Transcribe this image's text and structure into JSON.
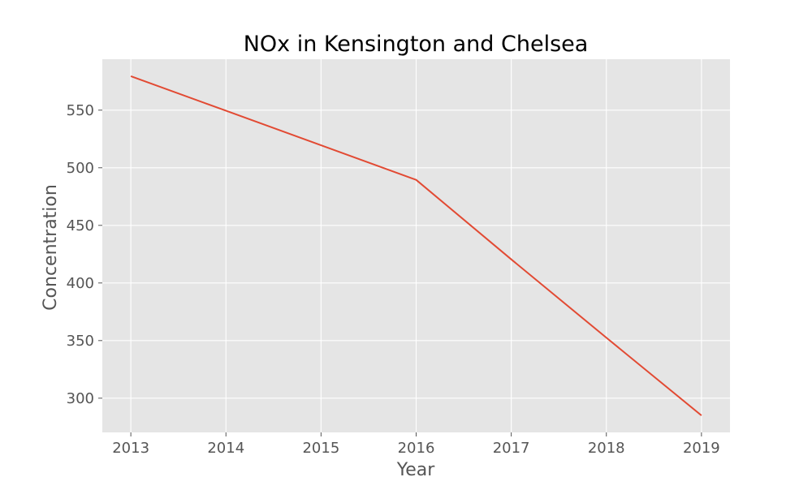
{
  "chart_data": {
    "type": "line",
    "title": "NOx in Kensington and Chelsea",
    "xlabel": "Year",
    "ylabel": "Concentration",
    "x": [
      2013,
      2014,
      2015,
      2016,
      2017,
      2018,
      2019
    ],
    "series": [
      {
        "values": [
          579.5,
          549.5,
          519.5,
          489.5,
          420.5,
          352.5,
          285.0
        ]
      }
    ],
    "xticks": [
      "2013",
      "2014",
      "2015",
      "2016",
      "2017",
      "2018",
      "2019"
    ],
    "yticks": [
      "300",
      "350",
      "400",
      "450",
      "500",
      "550"
    ],
    "ytick_values": [
      300,
      350,
      400,
      450,
      500,
      550
    ],
    "xlim": [
      2012.7,
      2019.3
    ],
    "ylim": [
      270.3,
      594.2
    ],
    "grid": true,
    "legend": "none",
    "colors": {
      "line": "#e24a33",
      "plot_background": "#e5e5e5",
      "grid": "#ffffff",
      "tick_text": "#555555",
      "title_text": "#000000"
    }
  }
}
